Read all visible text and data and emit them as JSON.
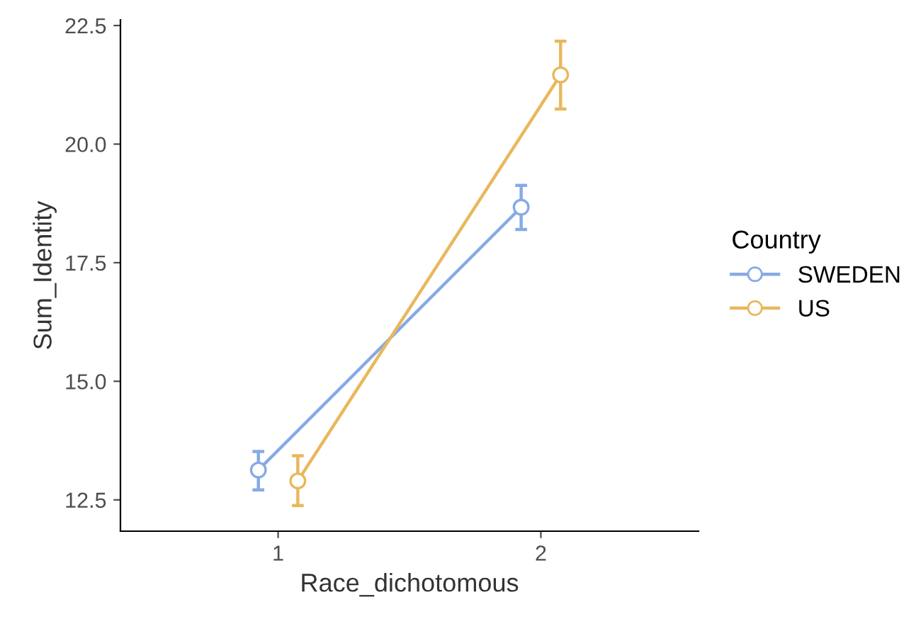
{
  "chart_data": {
    "type": "line",
    "xlabel": "Race_dichotomous",
    "ylabel": "Sum_Identity",
    "legend_title": "Country",
    "categories": [
      "1",
      "2"
    ],
    "series": [
      {
        "name": "SWEDEN",
        "color": "#86aae6",
        "values": [
          13.13,
          18.67
        ],
        "errors": [
          [
            12.71,
            13.52
          ],
          [
            18.2,
            19.13
          ]
        ]
      },
      {
        "name": "US",
        "color": "#e9b85c",
        "values": [
          12.9,
          21.46
        ],
        "errors": [
          [
            12.38,
            13.43
          ],
          [
            20.74,
            22.17
          ]
        ]
      }
    ],
    "ylim": [
      11.84,
      22.62
    ],
    "yticks": [
      12.5,
      {
        "value": 15,
        "label": "15.0"
      },
      17.5,
      {
        "value": 20,
        "label": "20.0"
      },
      22.5
    ],
    "grid": false,
    "legend": "right",
    "marker": "circle",
    "line_style": "solid"
  }
}
